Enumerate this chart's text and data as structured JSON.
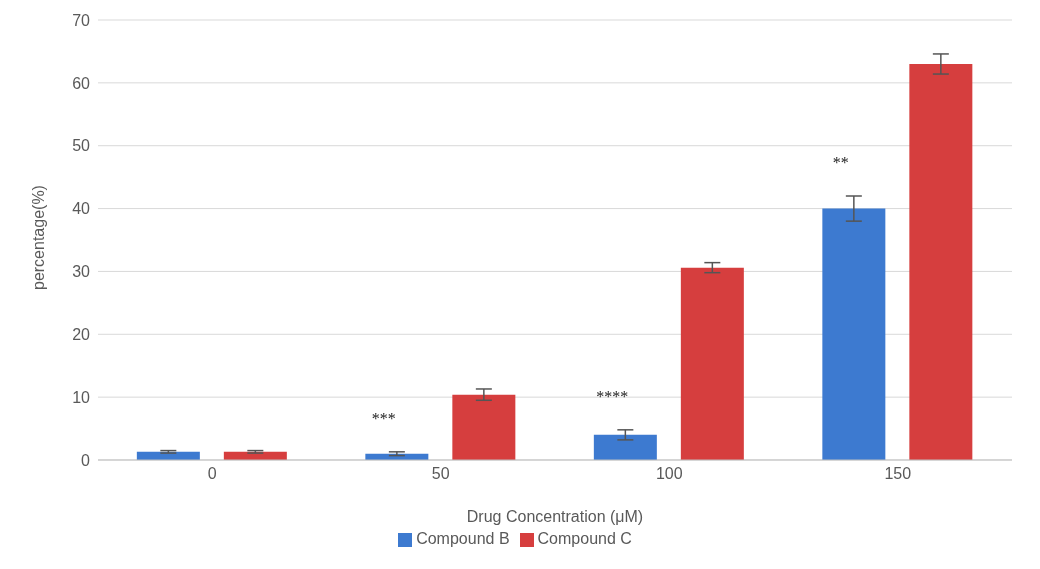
{
  "chart_data": {
    "type": "bar",
    "xlabel": "Drug Concentration (μM)",
    "ylabel": "percentage(%)",
    "categories": [
      "0",
      "50",
      "100",
      "150"
    ],
    "series": [
      {
        "name": "Compound B",
        "color": "#3d7ad0",
        "values": [
          1.3,
          1.0,
          4.0,
          40.0
        ],
        "errors": [
          0.2,
          0.3,
          0.8,
          2.0
        ]
      },
      {
        "name": "Compound C",
        "color": "#d63e3e",
        "values": [
          1.3,
          10.4,
          30.6,
          63.0
        ],
        "errors": [
          0.2,
          0.9,
          0.8,
          1.6
        ]
      }
    ],
    "ylim": [
      0,
      70
    ],
    "yticks": [
      0,
      10,
      20,
      30,
      40,
      50,
      60,
      70
    ],
    "grid": "y",
    "legend": "bottom",
    "annotations": [
      "***",
      "****",
      "**"
    ]
  }
}
